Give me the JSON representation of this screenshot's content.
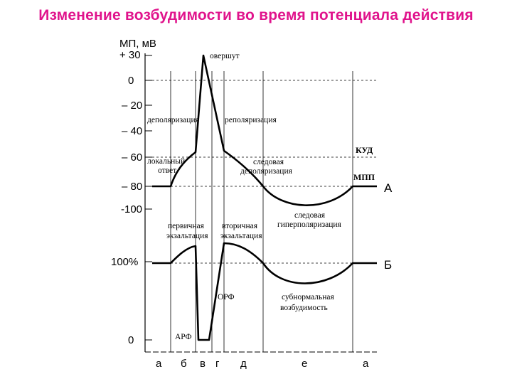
{
  "title": "Изменение возбудимости во время потенциала действия",
  "potential_axis": {
    "label": "МП, мВ",
    "ticks": [
      "+ 30",
      "0",
      "– 20",
      "– 40",
      "– 60",
      "– 80",
      "-100"
    ],
    "annotations": {
      "overshoot": "овершут",
      "depolarization": "деполяризация",
      "repolarization": "реполяризация",
      "local_response_1": "локальный",
      "local_response_2": "ответ",
      "trace_depol_1": "следовая",
      "trace_depol_2": "деполяризация",
      "trace_hyper_1": "следовая",
      "trace_hyper_2": "гиперполяризация",
      "kud": "КУД",
      "mpp": "МПП"
    },
    "curve_label": "А"
  },
  "excitability_axis": {
    "ticks": [
      "100%",
      "0"
    ],
    "annotations": {
      "primary_exalt_1": "первичная",
      "primary_exalt_2": "экзальтация",
      "secondary_exalt_1": "вторичная",
      "secondary_exalt_2": "экзальтация",
      "orf": "ОРФ",
      "arf": "АРФ",
      "subnormal_1": "субнормальная",
      "subnormal_2": "возбудимость"
    },
    "curve_label": "Б"
  },
  "phases": [
    "а",
    "б",
    "в",
    "г",
    "д",
    "е",
    "а"
  ]
}
